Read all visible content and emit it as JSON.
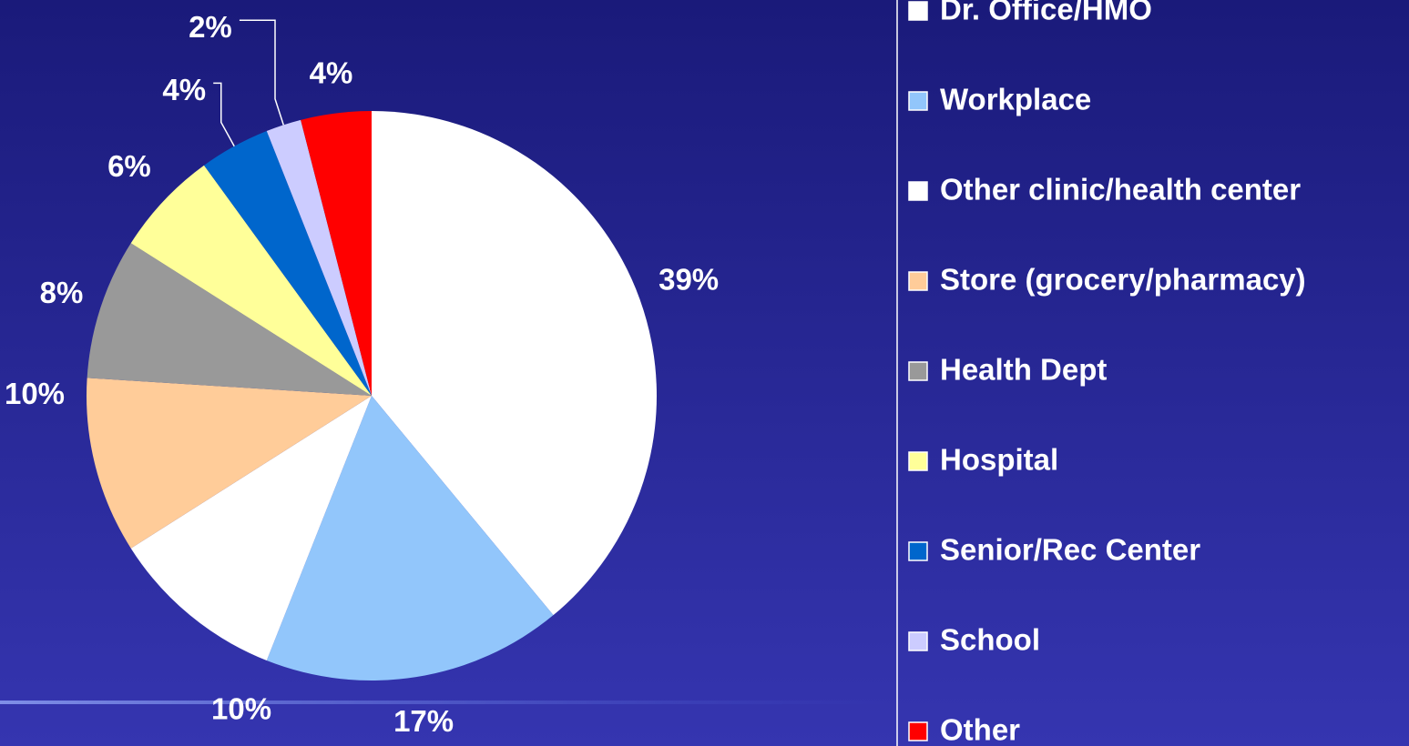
{
  "chart_data": {
    "type": "pie",
    "categories": [
      "Dr. Office/HMO",
      "Workplace",
      "Other clinic/health center",
      "Store (grocery/pharmacy)",
      "Health Dept",
      "Hospital",
      "Senior/Rec Center",
      "School",
      "Other"
    ],
    "values": [
      39,
      17,
      10,
      10,
      8,
      6,
      4,
      2,
      4
    ],
    "value_labels": [
      "39%",
      "17%",
      "10%",
      "10%",
      "8%",
      "6%",
      "4%",
      "2%",
      "4%"
    ],
    "colors": [
      "#ffffff",
      "#92c6fb",
      "#ffffff",
      "#ffcc99",
      "#999999",
      "#ffff99",
      "#0066cc",
      "#ccccff",
      "#ff0000"
    ],
    "legend": "right"
  }
}
